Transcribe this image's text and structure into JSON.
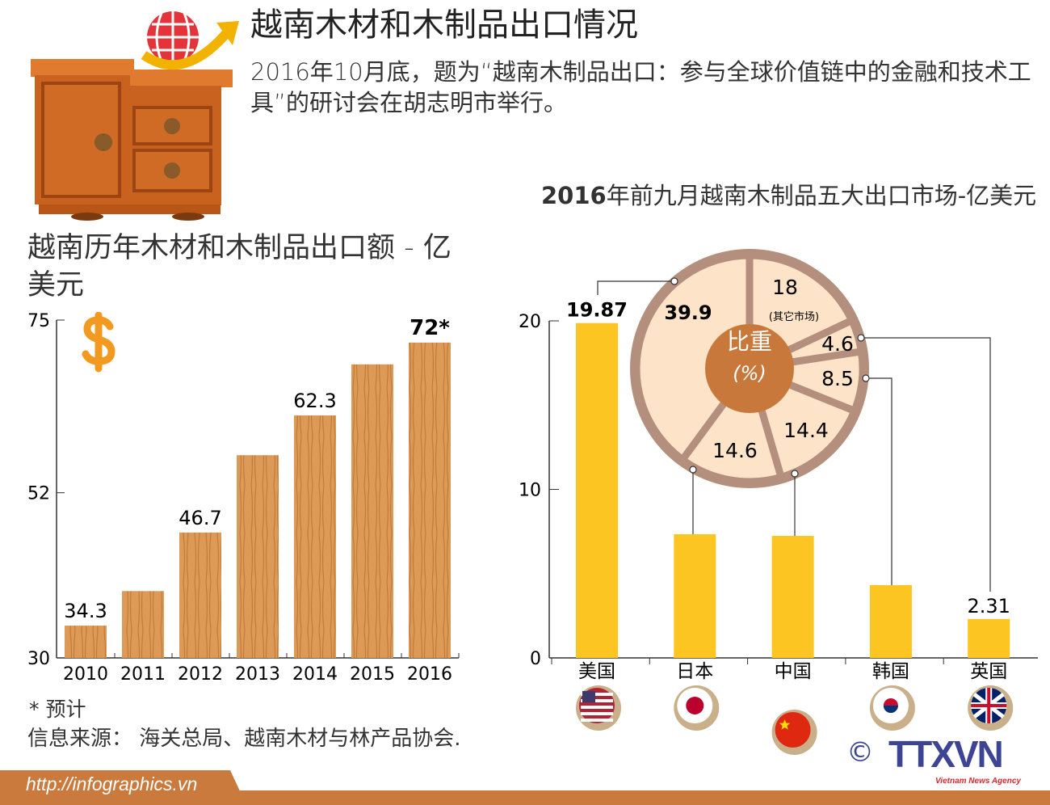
{
  "header": {
    "title": "越南木材和木制品出口情况",
    "subtitle": "2016年10月底，题为“越南木制品出口：参与全球价值链中的金融和技术工具”的研讨会在胡志明市举行。"
  },
  "chart_data": [
    {
      "type": "bar",
      "title": "越南历年木材和木制品出口额 - 亿美元",
      "categories": [
        "2010",
        "2011",
        "2012",
        "2013",
        "2014",
        "2015",
        "2016"
      ],
      "values": [
        34.3,
        38.9,
        46.7,
        57.0,
        62.3,
        69.1,
        72
      ],
      "data_labels": [
        "34.3",
        "",
        "46.7",
        "",
        "62.3",
        "",
        "72*"
      ],
      "yticks": [
        "30",
        "52",
        "75"
      ],
      "ylim": [
        30,
        75
      ],
      "xlabel": "",
      "ylabel": "",
      "bar_color": "#d9934f"
    },
    {
      "type": "bar",
      "title_bold": "2016",
      "title": "年前九月越南木制品五大出口市场-亿美元",
      "categories": [
        "美国",
        "日本",
        "中国",
        "韩国",
        "英国"
      ],
      "values": [
        19.87,
        7.34,
        7.24,
        4.32,
        2.31
      ],
      "data_labels": [
        "19.87",
        "",
        "",
        "",
        "2.31"
      ],
      "yticks": [
        "0",
        "10",
        "20"
      ],
      "ylim": [
        0,
        20
      ],
      "flags": [
        "us-flag",
        "japan-flag",
        "china-flag",
        "korea-flag",
        "uk-flag"
      ],
      "bar_color": "#fcc521"
    },
    {
      "type": "pie",
      "center_label": "比重",
      "center_unit": "(%)",
      "slices": [
        {
          "market": "其它市场",
          "value": 18,
          "label": "18",
          "sublabel": "(其它市场)"
        },
        {
          "market": "英国",
          "value": 4.6,
          "label": "4.6"
        },
        {
          "market": "韩国",
          "value": 8.5,
          "label": "8.5"
        },
        {
          "market": "中国",
          "value": 14.4,
          "label": "14.4"
        },
        {
          "market": "日本",
          "value": 14.6,
          "label": "14.6"
        },
        {
          "market": "美国",
          "value": 39.9,
          "label": "39.9"
        }
      ],
      "colors": {
        "slice": "#fde3c7",
        "ring": "#b48f7e",
        "center": "#c8783a"
      }
    }
  ],
  "footer": {
    "note": "* 预计",
    "source": "信息来源：  海关总局、越南木材与林产品协会.",
    "url": "http://infographics.vn",
    "copyright": "©",
    "logo": "TTXVN",
    "agency": "Vietnam News Agency"
  }
}
